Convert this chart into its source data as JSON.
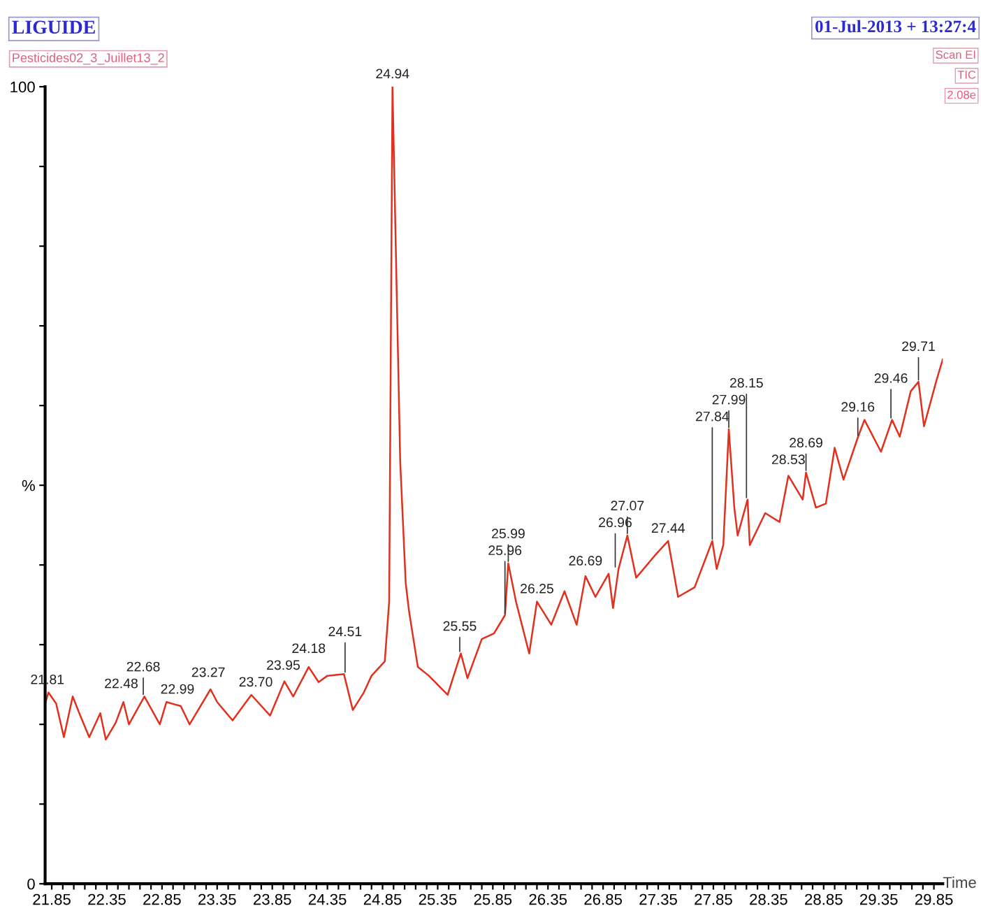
{
  "chart_data": {
    "type": "line",
    "title": "LIGUIDE",
    "subtitle": "Pesticides02_3_Juillet13_2",
    "xlabel": "Time",
    "annotations": [
      "01-Jul-2013 + 13:27:4",
      "Scan EI",
      "TIC",
      "2.08e",
      {
        "text": "21.81",
        "x": 21.81,
        "y": 24.0
      },
      {
        "text": "22.48",
        "x": 22.48,
        "y": 22.8
      },
      {
        "text": "22.68",
        "x": 22.68,
        "y": 23.5
      },
      {
        "text": "22.99",
        "x": 22.99,
        "y": 22.3
      },
      {
        "text": "23.27",
        "x": 23.27,
        "y": 24.4
      },
      {
        "text": "23.70",
        "x": 23.7,
        "y": 23.7
      },
      {
        "text": "23.95",
        "x": 23.95,
        "y": 25.4
      },
      {
        "text": "24.18",
        "x": 24.18,
        "y": 27.2
      },
      {
        "text": "24.51",
        "x": 24.51,
        "y": 26.3
      },
      {
        "text": "24.94",
        "x": 24.94,
        "y": 100
      },
      {
        "text": "25.55",
        "x": 25.55,
        "y": 28.9
      },
      {
        "text": "25.96",
        "x": 25.96,
        "y": 33.7
      },
      {
        "text": "25.99",
        "x": 25.99,
        "y": 40.2
      },
      {
        "text": "26.25",
        "x": 26.25,
        "y": 35.4
      },
      {
        "text": "26.69",
        "x": 26.69,
        "y": 38.6
      },
      {
        "text": "26.96",
        "x": 26.96,
        "y": 39.5
      },
      {
        "text": "27.07",
        "x": 27.07,
        "y": 43.7
      },
      {
        "text": "27.44",
        "x": 27.44,
        "y": 43.0
      },
      {
        "text": "27.84",
        "x": 27.84,
        "y": 43.0
      },
      {
        "text": "27.99",
        "x": 27.99,
        "y": 57.0
      },
      {
        "text": "28.15",
        "x": 28.15,
        "y": 48.2
      },
      {
        "text": "28.53",
        "x": 28.53,
        "y": 51.2
      },
      {
        "text": "28.69",
        "x": 28.69,
        "y": 51.6
      },
      {
        "text": "29.16",
        "x": 29.16,
        "y": 56.0
      },
      {
        "text": "29.46",
        "x": 29.46,
        "y": 58.2
      },
      {
        "text": "29.71",
        "x": 29.71,
        "y": 63.0
      }
    ],
    "x": [
      21.79,
      21.82,
      21.89,
      21.96,
      22.04,
      22.1,
      22.19,
      22.29,
      22.34,
      22.43,
      22.5,
      22.55,
      22.69,
      22.83,
      22.89,
      23.02,
      23.1,
      23.29,
      23.35,
      23.49,
      23.66,
      23.83,
      23.96,
      24.04,
      24.18,
      24.27,
      24.35,
      24.5,
      24.58,
      24.68,
      24.75,
      24.87,
      24.91,
      24.94,
      25.01,
      25.06,
      25.09,
      25.17,
      25.27,
      25.44,
      25.56,
      25.62,
      25.75,
      25.86,
      25.96,
      25.99,
      26.06,
      26.18,
      26.25,
      26.38,
      26.5,
      26.61,
      26.69,
      26.78,
      26.9,
      26.94,
      26.99,
      27.07,
      27.15,
      27.32,
      27.44,
      27.53,
      27.68,
      27.84,
      27.88,
      27.94,
      27.99,
      28.04,
      28.07,
      28.16,
      28.18,
      28.32,
      28.45,
      28.53,
      28.66,
      28.69,
      28.78,
      28.87,
      28.95,
      29.03,
      29.16,
      29.22,
      29.37,
      29.47,
      29.54,
      29.64,
      29.71,
      29.76,
      29.87,
      29.93
    ],
    "series": [
      {
        "color": "#e0301e",
        "values": [
          22.6,
          24.0,
          22.6,
          18.4,
          23.5,
          21.4,
          18.4,
          21.4,
          18.1,
          20.2,
          22.8,
          20.0,
          23.5,
          20.0,
          22.8,
          22.3,
          20.0,
          24.4,
          22.8,
          20.5,
          23.7,
          21.1,
          25.4,
          23.5,
          27.2,
          25.3,
          26.1,
          26.3,
          21.8,
          24.0,
          26.1,
          27.9,
          35.4,
          100,
          53,
          37.7,
          34.2,
          27.2,
          26.1,
          23.7,
          28.9,
          25.8,
          30.7,
          31.4,
          33.7,
          40.2,
          35.4,
          28.9,
          35.4,
          32.5,
          36.7,
          32.5,
          38.6,
          36.0,
          38.9,
          34.6,
          39.5,
          43.7,
          38.4,
          41.2,
          43.0,
          36.0,
          37.2,
          43.0,
          39.5,
          42.5,
          57.0,
          47.2,
          43.7,
          48.2,
          42.5,
          46.5,
          45.4,
          51.2,
          48.2,
          51.6,
          47.2,
          47.7,
          54.7,
          50.7,
          56.0,
          58.2,
          54.2,
          58.2,
          56.1,
          61.8,
          63.0,
          57.4,
          63.0,
          65.8
        ]
      }
    ],
    "xlim": [
      21.79,
      29.93
    ],
    "ylim": [
      0,
      100
    ],
    "xticks": [
      21.85,
      {
        "value": 21.95,
        "label": null
      },
      {
        "value": 22.05,
        "label": null
      },
      {
        "value": 22.15,
        "label": null
      },
      {
        "value": 22.25,
        "label": null
      },
      22.35,
      {
        "value": 22.45,
        "label": null
      },
      {
        "value": 22.55,
        "label": null
      },
      {
        "value": 22.65,
        "label": null
      },
      {
        "value": 22.75,
        "label": null
      },
      22.85,
      {
        "value": 22.95,
        "label": null
      },
      {
        "value": 23.05,
        "label": null
      },
      {
        "value": 23.15,
        "label": null
      },
      {
        "value": 23.25,
        "label": null
      },
      23.35,
      {
        "value": 23.45,
        "label": null
      },
      {
        "value": 23.55,
        "label": null
      },
      {
        "value": 23.65,
        "label": null
      },
      {
        "value": 23.75,
        "label": null
      },
      23.85,
      {
        "value": 23.95,
        "label": null
      },
      {
        "value": 24.05,
        "label": null
      },
      {
        "value": 24.15,
        "label": null
      },
      {
        "value": 24.25,
        "label": null
      },
      24.35,
      {
        "value": 24.45,
        "label": null
      },
      {
        "value": 24.55,
        "label": null
      },
      {
        "value": 24.65,
        "label": null
      },
      {
        "value": 24.75,
        "label": null
      },
      24.85,
      {
        "value": 24.95,
        "label": null
      },
      {
        "value": 25.05,
        "label": null
      },
      {
        "value": 25.15,
        "label": null
      },
      {
        "value": 25.25,
        "label": null
      },
      25.35,
      {
        "value": 25.45,
        "label": null
      },
      {
        "value": 25.55,
        "label": null
      },
      {
        "value": 25.65,
        "label": null
      },
      {
        "value": 25.75,
        "label": null
      },
      25.85,
      {
        "value": 25.95,
        "label": null
      },
      {
        "value": 26.05,
        "label": null
      },
      {
        "value": 26.15,
        "label": null
      },
      {
        "value": 26.25,
        "label": null
      },
      26.35,
      {
        "value": 26.45,
        "label": null
      },
      {
        "value": 26.55,
        "label": null
      },
      {
        "value": 26.65,
        "label": null
      },
      {
        "value": 26.75,
        "label": null
      },
      26.85,
      {
        "value": 26.95,
        "label": null
      },
      {
        "value": 27.05,
        "label": null
      },
      {
        "value": 27.15,
        "label": null
      },
      {
        "value": 27.25,
        "label": null
      },
      27.35,
      {
        "value": 27.45,
        "label": null
      },
      {
        "value": 27.55,
        "label": null
      },
      {
        "value": 27.65,
        "label": null
      },
      {
        "value": 27.75,
        "label": null
      },
      27.85,
      {
        "value": 27.95,
        "label": null
      },
      {
        "value": 28.05,
        "label": null
      },
      {
        "value": 28.15,
        "label": null
      },
      {
        "value": 28.25,
        "label": null
      },
      28.35,
      {
        "value": 28.45,
        "label": null
      },
      {
        "value": 28.55,
        "label": null
      },
      {
        "value": 28.65,
        "label": null
      },
      {
        "value": 28.75,
        "label": null
      },
      28.85,
      {
        "value": 28.95,
        "label": null
      },
      {
        "value": 29.05,
        "label": null
      },
      {
        "value": 29.15,
        "label": null
      },
      {
        "value": 29.25,
        "label": null
      },
      29.35,
      {
        "value": 29.45,
        "label": null
      },
      {
        "value": 29.55,
        "label": null
      },
      {
        "value": 29.65,
        "label": null
      },
      {
        "value": 29.75,
        "label": null
      },
      29.85
    ],
    "yticks": [
      0,
      {
        "value": 10,
        "label": null
      },
      {
        "value": 20,
        "label": null
      },
      {
        "value": 30,
        "label": null
      },
      {
        "value": 40,
        "label": null
      },
      {
        "value": 50,
        "label": "%"
      },
      {
        "value": 60,
        "label": null
      },
      {
        "value": 70,
        "label": null
      },
      {
        "value": 80,
        "label": null
      },
      {
        "value": 90,
        "label": null
      },
      100
    ],
    "grid": false,
    "line_style": "solid"
  }
}
